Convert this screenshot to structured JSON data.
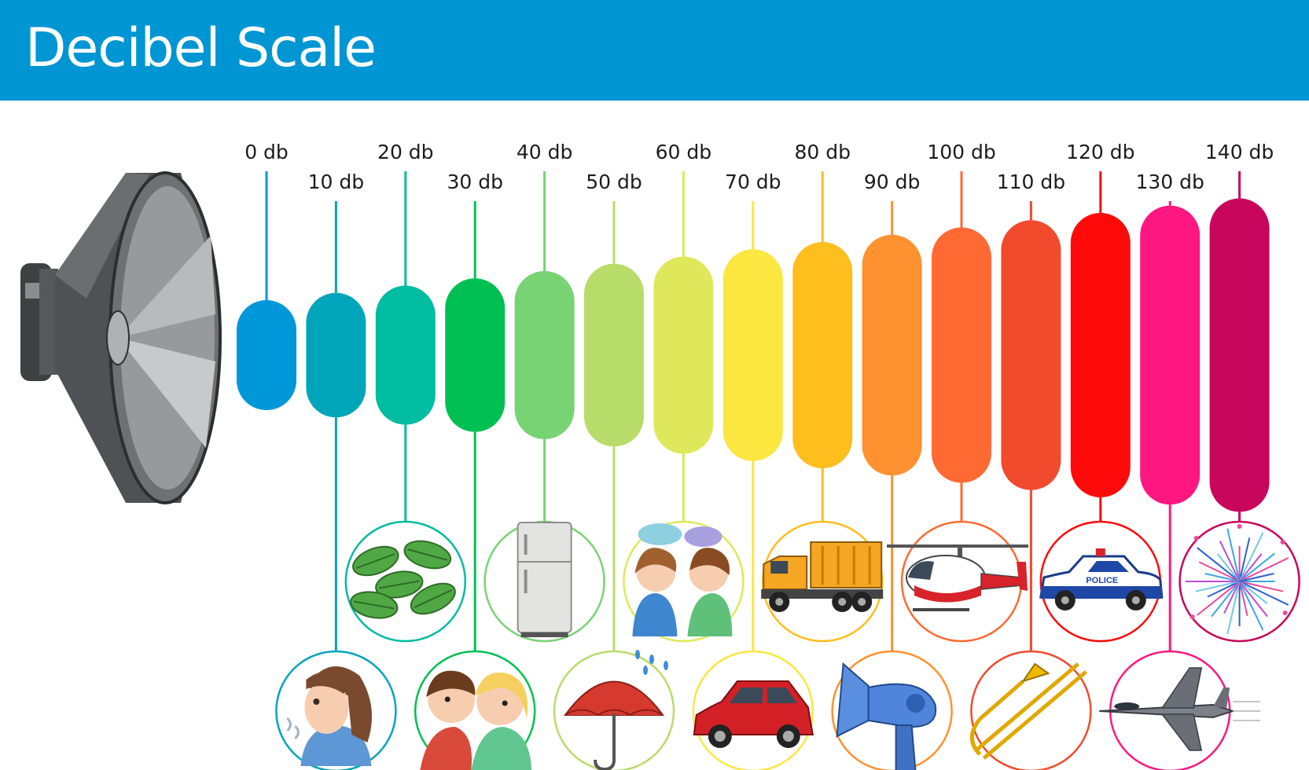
{
  "header": {
    "title": "Decibel Scale",
    "bg_color": "#0095d3"
  },
  "levels": [
    {
      "label": "0 db",
      "db": 0,
      "color": "#0097d8",
      "icon": null
    },
    {
      "label": "10 db",
      "db": 10,
      "color": "#00a5ba",
      "icon": "breathing-girl-icon"
    },
    {
      "label": "20 db",
      "db": 20,
      "color": "#00bca0",
      "icon": "rustling-leaves-icon"
    },
    {
      "label": "30 db",
      "db": 30,
      "color": "#00c053",
      "icon": "whispering-kids-icon"
    },
    {
      "label": "40 db",
      "db": 40,
      "color": "#78d374",
      "icon": "refrigerator-icon"
    },
    {
      "label": "50 db",
      "db": 50,
      "color": "#b8dc6a",
      "icon": "rain-umbrella-icon"
    },
    {
      "label": "60 db",
      "db": 60,
      "color": "#dfe85a",
      "icon": "conversation-icon"
    },
    {
      "label": "70 db",
      "db": 70,
      "color": "#fce640",
      "icon": "car-icon"
    },
    {
      "label": "80 db",
      "db": 80,
      "color": "#fdbe1e",
      "icon": "dump-truck-icon"
    },
    {
      "label": "90 db",
      "db": 90,
      "color": "#ff9230",
      "icon": "hair-dryer-icon"
    },
    {
      "label": "100 db",
      "db": 100,
      "color": "#ff6a32",
      "icon": "helicopter-icon"
    },
    {
      "label": "110 db",
      "db": 110,
      "color": "#f14a2c",
      "icon": "trombone-icon"
    },
    {
      "label": "120 db",
      "db": 120,
      "color": "#ff0a0a",
      "icon": "police-car-icon"
    },
    {
      "label": "130 db",
      "db": 130,
      "color": "#ff1781",
      "icon": "jet-plane-icon"
    },
    {
      "label": "140 db",
      "db": 140,
      "color": "#c8065b",
      "icon": "fireworks-icon"
    }
  ],
  "icon_labels": {
    "police_car_text": "POLICE"
  }
}
